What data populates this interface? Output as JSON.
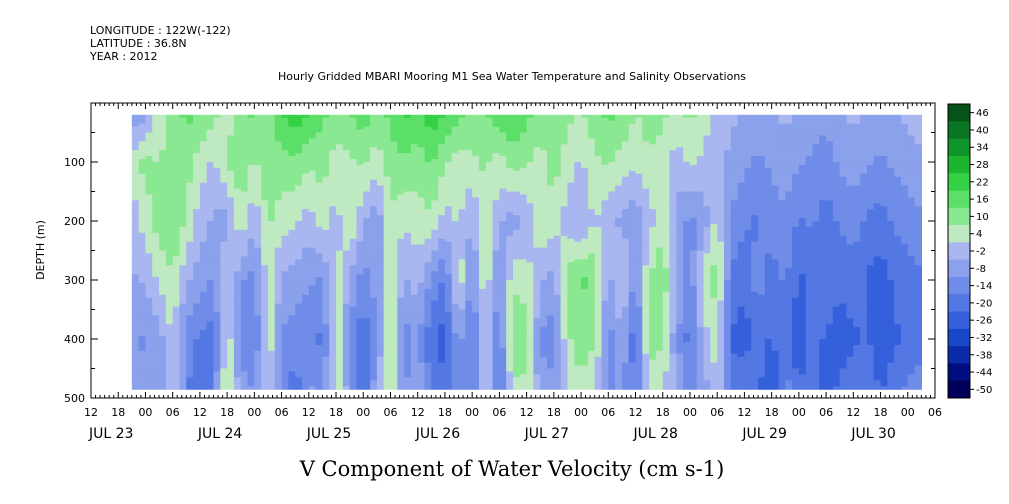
{
  "header": {
    "longitude": "LONGITUDE : 122W(-122)",
    "latitude": "LATITUDE : 36.8N",
    "year": "YEAR : 2012"
  },
  "chart_data": {
    "type": "heatmap",
    "title": "Hourly Gridded MBARI Mooring M1 Sea Water Temperature and Salinity Observations",
    "xlabel": "V Component of Water Velocity (cm s-1)",
    "ylabel": "DEPTH (m)",
    "y_reversed": true,
    "x_range_hours": [
      0,
      186
    ],
    "y_range": [
      0,
      500
    ],
    "data_start_hour": 9,
    "data_end_hour": 183,
    "depth_range": [
      20,
      485
    ],
    "y_ticks": [
      100,
      200,
      300,
      400,
      500
    ],
    "y_tick_labels": [
      "100",
      "200",
      "300",
      "400",
      "500"
    ],
    "x_ticks_hours": [
      0,
      6,
      12,
      18,
      24,
      30,
      36,
      42,
      48,
      54,
      60,
      66,
      72,
      78,
      84,
      90,
      96,
      102,
      108,
      114,
      120,
      126,
      132,
      138,
      144,
      150,
      156,
      162,
      168,
      174,
      180,
      186
    ],
    "x_tick_labels": [
      "12",
      "18",
      "00",
      "06",
      "12",
      "18",
      "00",
      "06",
      "12",
      "18",
      "00",
      "06",
      "12",
      "18",
      "00",
      "06",
      "12",
      "18",
      "00",
      "06",
      "12",
      "18",
      "00",
      "06",
      "12",
      "18",
      "00",
      "06",
      "12",
      "18",
      "00",
      "06"
    ],
    "date_labels": [
      {
        "label": "JUL 23",
        "hour": 0
      },
      {
        "label": "JUL 24",
        "hour": 24
      },
      {
        "label": "JUL 25",
        "hour": 48
      },
      {
        "label": "JUL 26",
        "hour": 72
      },
      {
        "label": "JUL 27",
        "hour": 96
      },
      {
        "label": "JUL 28",
        "hour": 120
      },
      {
        "label": "JUL 29",
        "hour": 144
      },
      {
        "label": "JUL 30",
        "hour": 168
      }
    ],
    "colorbar_levels": [
      46,
      40,
      34,
      28,
      22,
      16,
      10,
      4,
      -2,
      -8,
      -14,
      -20,
      -26,
      -32,
      -38,
      -44,
      -50
    ],
    "colorbar_labels": [
      "46",
      "40",
      "34",
      "28",
      "22",
      "16",
      "10",
      "4",
      "-2",
      "-8",
      "-14",
      "-20",
      "-26",
      "-32",
      "-38",
      "-44",
      "-50"
    ],
    "columns_hours": [
      9,
      12,
      15,
      18,
      21,
      24,
      27,
      30,
      33,
      36,
      39,
      42,
      45,
      48,
      51,
      54,
      57,
      60,
      63,
      66,
      69,
      72,
      75,
      78,
      81,
      84,
      87,
      90,
      93,
      96,
      99,
      102,
      105,
      108,
      111,
      114,
      117,
      120,
      123,
      126,
      129,
      132,
      135,
      138,
      141,
      144,
      147,
      150,
      153,
      156,
      159,
      162,
      165,
      168,
      171,
      174,
      177,
      180,
      183
    ],
    "column_depths": [
      25,
      100,
      200,
      300,
      400,
      480
    ],
    "column_values": [
      [
        -8,
        2,
        -2,
        -6,
        -10,
        -8
      ],
      [
        -6,
        10,
        4,
        -4,
        -12,
        -10
      ],
      [
        4,
        6,
        10,
        2,
        -8,
        -10
      ],
      [
        10,
        12,
        14,
        6,
        2,
        4
      ],
      [
        14,
        10,
        6,
        -4,
        -14,
        -16
      ],
      [
        12,
        4,
        -2,
        -8,
        -18,
        -22
      ],
      [
        8,
        0,
        -6,
        -12,
        -20,
        -16
      ],
      [
        4,
        8,
        -8,
        4,
        6,
        8
      ],
      [
        10,
        12,
        6,
        -10,
        -14,
        -8
      ],
      [
        14,
        6,
        -4,
        -14,
        -18,
        -12
      ],
      [
        8,
        12,
        8,
        4,
        6,
        4
      ],
      [
        18,
        10,
        4,
        -6,
        -12,
        -14
      ],
      [
        22,
        12,
        2,
        -8,
        -14,
        -20
      ],
      [
        18,
        8,
        -2,
        -10,
        -16,
        -10
      ],
      [
        14,
        10,
        4,
        -12,
        -18,
        -14
      ],
      [
        10,
        4,
        -2,
        4,
        6,
        4
      ],
      [
        12,
        6,
        8,
        -6,
        -12,
        -8
      ],
      [
        16,
        8,
        -4,
        -14,
        -22,
        -24
      ],
      [
        10,
        4,
        -10,
        -8,
        -12,
        -6
      ],
      [
        14,
        10,
        6,
        4,
        8,
        10
      ],
      [
        20,
        12,
        2,
        -6,
        -14,
        -12
      ],
      [
        16,
        10,
        4,
        -2,
        -10,
        -6
      ],
      [
        22,
        14,
        6,
        -12,
        -22,
        -18
      ],
      [
        18,
        8,
        -2,
        -18,
        -26,
        -22
      ],
      [
        14,
        4,
        2,
        6,
        -8,
        -10
      ],
      [
        10,
        6,
        -6,
        -12,
        -20,
        -16
      ],
      [
        12,
        8,
        8,
        6,
        4,
        2
      ],
      [
        16,
        4,
        -4,
        -14,
        -18,
        -20
      ],
      [
        18,
        10,
        -8,
        6,
        12,
        6
      ],
      [
        14,
        8,
        -4,
        4,
        10,
        6
      ],
      [
        10,
        4,
        6,
        -4,
        -12,
        -8
      ],
      [
        12,
        10,
        4,
        -8,
        -14,
        -10
      ],
      [
        8,
        4,
        -2,
        10,
        6,
        4
      ],
      [
        6,
        0,
        -6,
        14,
        10,
        6
      ],
      [
        10,
        6,
        2,
        12,
        8,
        2
      ],
      [
        14,
        8,
        -4,
        -8,
        -14,
        -12
      ],
      [
        12,
        4,
        -6,
        4,
        -6,
        -10
      ],
      [
        6,
        2,
        -10,
        -14,
        -22,
        -18
      ],
      [
        10,
        6,
        -2,
        8,
        10,
        4
      ],
      [
        8,
        4,
        6,
        12,
        8,
        2
      ],
      [
        4,
        -2,
        -8,
        -4,
        -10,
        -6
      ],
      [
        8,
        2,
        -12,
        -16,
        -20,
        -14
      ],
      [
        4,
        0,
        -10,
        6,
        -2,
        -8
      ],
      [
        -2,
        -4,
        4,
        10,
        4,
        2
      ],
      [
        -4,
        -6,
        -12,
        -18,
        -24,
        -20
      ],
      [
        -6,
        -10,
        -16,
        -22,
        -26,
        -18
      ],
      [
        -8,
        -12,
        -18,
        -14,
        -20,
        -22
      ],
      [
        -6,
        -10,
        -14,
        -20,
        -24,
        -28
      ],
      [
        -4,
        -8,
        -12,
        -16,
        -18,
        -14
      ],
      [
        -6,
        -10,
        -18,
        -24,
        -28,
        -24
      ],
      [
        -8,
        -12,
        -16,
        -22,
        -20,
        -16
      ],
      [
        -10,
        -14,
        -20,
        -18,
        -24,
        -26
      ],
      [
        -6,
        -10,
        -16,
        -22,
        -26,
        -22
      ],
      [
        -4,
        -8,
        -14,
        -20,
        -24,
        -20
      ],
      [
        -6,
        -10,
        -18,
        -24,
        -22,
        -18
      ],
      [
        -8,
        -12,
        -20,
        -26,
        -28,
        -24
      ],
      [
        -6,
        -10,
        -16,
        -22,
        -24,
        -20
      ],
      [
        -4,
        -8,
        -14,
        -20,
        -22,
        -16
      ],
      [
        -2,
        -6,
        -12,
        -18,
        -20,
        -14
      ]
    ],
    "colors": {
      "-50": "#00005a",
      "-44": "#000d7f",
      "-38": "#0a2aa8",
      "-32": "#1a47c9",
      "-26": "#3560db",
      "-20": "#5377e3",
      "-14": "#6e8ce8",
      "-8": "#8ba1ec",
      "-2": "#a9b6f0",
      "4": "#bfe9c1",
      "10": "#8be892",
      "16": "#5cdf68",
      "22": "#34d144",
      "28": "#1cb52d",
      "34": "#10952a",
      "40": "#0a7523",
      "46": "#06531a"
    }
  }
}
